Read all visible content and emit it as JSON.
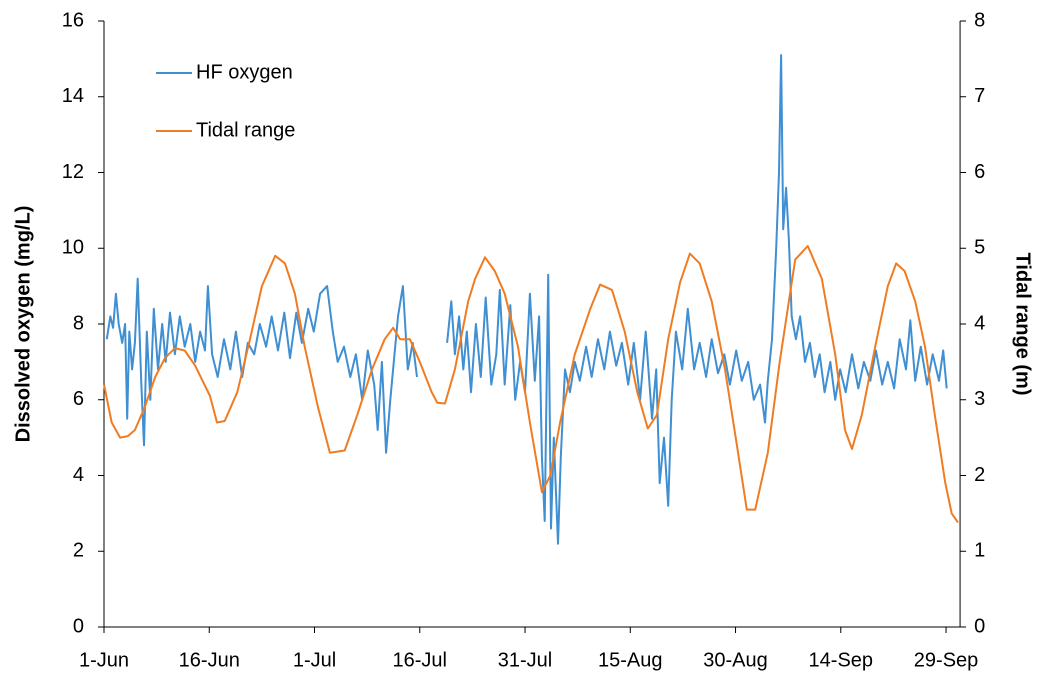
{
  "chart_data": {
    "type": "line",
    "xlim": [
      0,
      122
    ],
    "xticks": [
      {
        "value": 0,
        "label": "1-Jun"
      },
      {
        "value": 15,
        "label": "16-Jun"
      },
      {
        "value": 30,
        "label": "1-Jul"
      },
      {
        "value": 45,
        "label": "16-Jul"
      },
      {
        "value": 60,
        "label": "31-Jul"
      },
      {
        "value": 75,
        "label": "15-Aug"
      },
      {
        "value": 90,
        "label": "30-Aug"
      },
      {
        "value": 105,
        "label": "14-Sep"
      },
      {
        "value": 120,
        "label": "29-Sep"
      }
    ],
    "ylabel": "Dissolved oxygen (mg/L)",
    "ylim": [
      0,
      16
    ],
    "yticks": [
      0,
      2,
      4,
      6,
      8,
      10,
      12,
      14,
      16
    ],
    "y2label": "Tidal range (m)",
    "y2lim": [
      0,
      8
    ],
    "y2ticks": [
      0,
      1,
      2,
      3,
      4,
      5,
      6,
      7,
      8
    ],
    "grid": false,
    "legend": "upper left",
    "series": [
      {
        "name": "HF oxygen",
        "color": "#3f8fd2",
        "x": [
          0.4,
          0.9,
          1.3,
          1.7,
          2.1,
          2.6,
          3,
          3.3,
          3.6,
          4,
          4.4,
          4.8,
          5.3,
          5.7,
          6.1,
          6.6,
          7.1,
          7.7,
          8.3,
          8.8,
          9.4,
          10.1,
          10.8,
          11.5,
          12.3,
          13,
          13.7,
          14.4,
          14.8,
          15.4,
          16.2,
          17.1,
          18,
          18.8,
          19.7,
          20.5,
          21.4,
          22.2,
          23.1,
          23.9,
          24.8,
          25.7,
          26.5,
          27.4,
          28.2,
          29.1,
          29.9,
          30.8,
          31.8,
          32.6,
          33.3,
          34.2,
          35.1,
          35.9,
          36.8,
          37.6,
          38.5,
          39,
          39.6,
          40.2,
          40.8,
          41.3,
          41.9,
          42.6,
          43.3,
          44,
          44.6,
          46,
          48.9,
          49.5,
          50,
          50.6,
          51.2,
          51.7,
          52.3,
          53,
          53.7,
          54.4,
          55.2,
          55.9,
          56.4,
          57.1,
          57.9,
          58.6,
          59.3,
          60,
          60.7,
          61.4,
          62,
          62.4,
          62.8,
          63.3,
          63.7,
          64.1,
          64.7,
          65.1,
          65.7,
          66.4,
          67.1,
          67.8,
          68.7,
          69.5,
          70.4,
          71.3,
          72.1,
          73,
          73.8,
          74.7,
          75.5,
          76.4,
          77.2,
          78.1,
          78.7,
          79.2,
          79.8,
          80.4,
          80.9,
          81.5,
          82.4,
          83.2,
          84.1,
          84.9,
          85.8,
          86.6,
          87.5,
          88.4,
          89.2,
          90.1,
          90.9,
          91.8,
          92.6,
          93.5,
          94.2,
          94.6,
          95.2,
          95.8,
          96.2,
          96.5,
          96.8,
          97.2,
          97.6,
          98,
          98.6,
          99.2,
          99.9,
          100.6,
          101.3,
          102,
          102.7,
          103.5,
          104.2,
          104.9,
          105.7,
          106.6,
          107.5,
          108.3,
          109.2,
          110,
          110.9,
          111.7,
          112.6,
          113.4,
          114.3,
          114.9,
          115.6,
          116.4,
          117.3,
          118.1,
          119,
          119.6,
          120.1
        ],
        "values": [
          7.6,
          8.2,
          7.9,
          8.8,
          8.0,
          7.5,
          8.0,
          5.5,
          7.8,
          6.8,
          7.5,
          9.2,
          6.5,
          4.8,
          7.8,
          6.0,
          8.4,
          6.8,
          8.0,
          7.0,
          8.3,
          7.2,
          8.2,
          7.4,
          8.0,
          7.0,
          7.8,
          7.3,
          9.0,
          7.2,
          6.6,
          7.6,
          6.8,
          7.8,
          6.6,
          7.5,
          7.2,
          8.0,
          7.4,
          8.2,
          7.3,
          8.3,
          7.1,
          8.3,
          7.5,
          8.4,
          7.8,
          8.8,
          9.0,
          7.8,
          7.0,
          7.4,
          6.6,
          7.2,
          6.0,
          7.3,
          6.4,
          5.2,
          7.0,
          4.6,
          6.0,
          7.0,
          8.2,
          9.0,
          6.8,
          7.5,
          6.6,
          null,
          7.5,
          8.6,
          7.2,
          8.2,
          6.8,
          7.8,
          6.2,
          8.0,
          6.6,
          8.7,
          6.4,
          7.2,
          8.9,
          6.4,
          8.5,
          6.0,
          7.0,
          6.2,
          8.8,
          6.5,
          8.2,
          4.5,
          2.8,
          9.3,
          2.6,
          5.0,
          2.2,
          4.5,
          6.8,
          6.2,
          7.0,
          6.5,
          7.4,
          6.6,
          7.6,
          6.8,
          7.8,
          6.9,
          7.5,
          6.4,
          7.5,
          6.0,
          7.8,
          5.5,
          6.8,
          3.8,
          5.0,
          3.2,
          6.0,
          7.8,
          6.8,
          8.4,
          6.8,
          7.5,
          6.6,
          7.6,
          6.7,
          7.2,
          6.4,
          7.3,
          6.5,
          7.0,
          6.0,
          6.4,
          5.4,
          6.5,
          7.6,
          10.0,
          12.0,
          15.1,
          10.5,
          11.6,
          10.2,
          8.2,
          7.6,
          8.2,
          7.0,
          7.5,
          6.6,
          7.2,
          6.2,
          7.0,
          6.0,
          6.8,
          6.2,
          7.2,
          6.3,
          7.0,
          6.5,
          7.3,
          6.4,
          7.0,
          6.3,
          7.6,
          6.8,
          8.1,
          6.5,
          7.4,
          6.4,
          7.2,
          6.5,
          7.3,
          6.3
        ]
      },
      {
        "name": "Tidal range",
        "color": "#f07c22",
        "axis": "y2",
        "x": [
          0,
          1.1,
          2.3,
          3.4,
          4.4,
          5.8,
          7.3,
          8.7,
          10.1,
          11.5,
          13,
          15.1,
          16.1,
          17.2,
          19,
          20.8,
          22.5,
          24.4,
          25.8,
          27.2,
          28.6,
          30.5,
          32.2,
          34.3,
          36.1,
          38.2,
          40,
          41.2,
          42.2,
          43.6,
          45,
          46.7,
          47.5,
          48.6,
          50,
          51.9,
          52.9,
          54.3,
          55.7,
          57.1,
          59,
          60.7,
          62.4,
          63.6,
          65,
          67.1,
          69.3,
          70.7,
          72.4,
          74.2,
          76,
          77.5,
          78.8,
          80.4,
          82.1,
          83.5,
          84.9,
          86.6,
          88.5,
          90.2,
          91.6,
          92.8,
          94.6,
          96.3,
          98.5,
          100.3,
          102.3,
          104.2,
          105.6,
          106.6,
          108,
          109.9,
          111.7,
          112.9,
          114.1,
          115.6,
          117,
          118.4,
          119.9,
          120.8,
          121.7
        ],
        "values": [
          3.2,
          2.7,
          2.5,
          2.52,
          2.6,
          2.9,
          3.3,
          3.55,
          3.68,
          3.65,
          3.45,
          3.05,
          2.7,
          2.72,
          3.1,
          3.8,
          4.5,
          4.9,
          4.8,
          4.4,
          3.7,
          2.9,
          2.3,
          2.33,
          2.8,
          3.4,
          3.8,
          3.95,
          3.8,
          3.8,
          3.5,
          3.1,
          2.96,
          2.95,
          3.4,
          4.3,
          4.6,
          4.88,
          4.7,
          4.4,
          3.7,
          2.7,
          1.78,
          2.0,
          2.7,
          3.6,
          4.2,
          4.52,
          4.45,
          3.9,
          3.1,
          2.62,
          2.8,
          3.8,
          4.55,
          4.93,
          4.8,
          4.3,
          3.4,
          2.4,
          1.55,
          1.55,
          2.3,
          3.5,
          4.85,
          5.03,
          4.6,
          3.6,
          2.6,
          2.35,
          2.8,
          3.7,
          4.5,
          4.8,
          4.7,
          4.3,
          3.7,
          2.8,
          1.9,
          1.5,
          1.38
        ]
      }
    ]
  }
}
